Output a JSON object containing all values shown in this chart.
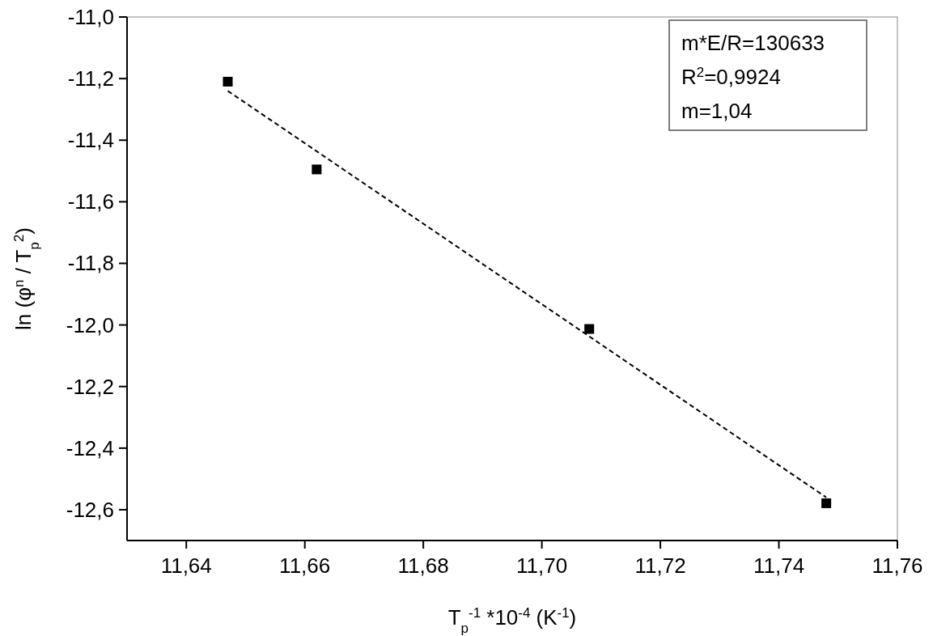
{
  "chart_data": {
    "type": "scatter",
    "xlabel": "T$_{p}$$^{-1}$ *10$^{-4}$ (K$^{-1}$)",
    "ylabel": "ln (φ$^{n}$ / T$_{p}$$^{2}$)",
    "annotations": [
      "m*E/R=130633",
      "R$^{2}$=0,9924",
      "m=1,04"
    ],
    "series": [
      {
        "color": "#000000",
        "marker": "square",
        "x": [
          11.647,
          11.662,
          11.708,
          11.748
        ],
        "values": [
          -11.21,
          -11.495,
          -12.013,
          -12.579
        ]
      },
      {
        "type": "line",
        "color": "#000000",
        "line_style": "dashed",
        "x": [
          11.647,
          11.748
        ],
        "values": [
          -11.24,
          -12.56
        ]
      }
    ],
    "xlim": [
      11.63,
      11.76
    ],
    "xticks": [
      {
        "value": 11.64,
        "label": "11,64"
      },
      {
        "value": 11.66,
        "label": "11,66"
      },
      {
        "value": 11.68,
        "label": "11,68"
      },
      {
        "value": 11.7,
        "label": "11,70"
      },
      {
        "value": 11.72,
        "label": "11,72"
      },
      {
        "value": 11.74,
        "label": "11,74"
      },
      {
        "value": 11.76,
        "label": "11,76"
      }
    ],
    "ylim": [
      -12.7,
      -11.0
    ],
    "yticks": [
      {
        "value": -11.0,
        "label": "-11,0"
      },
      {
        "value": -11.2,
        "label": "-11,2"
      },
      {
        "value": -11.4,
        "label": "-11,4"
      },
      {
        "value": -11.6,
        "label": "-11,6"
      },
      {
        "value": -11.8,
        "label": "-11,8"
      },
      {
        "value": -12.0,
        "label": "-12,0"
      },
      {
        "value": -12.2,
        "label": "-12,2"
      },
      {
        "value": -12.4,
        "label": "-12,4"
      },
      {
        "value": -12.6,
        "label": "-12,6"
      }
    ],
    "grid": false
  }
}
